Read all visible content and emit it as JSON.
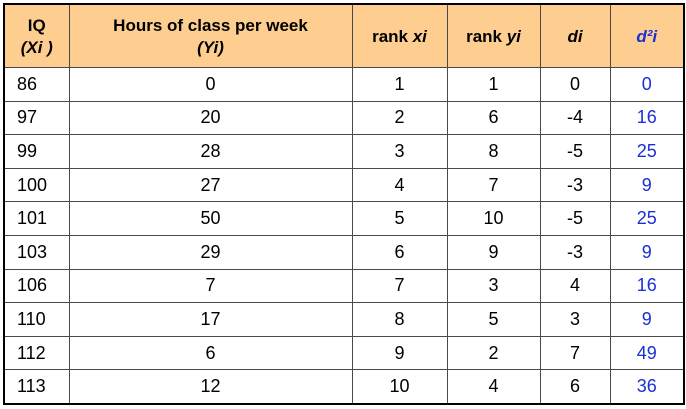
{
  "table": {
    "headers": {
      "x_line1": "IQ",
      "x_line2": "(Xi )",
      "y_line1": "Hours of class per week",
      "y_line2": "(Yi)",
      "rank_x_prefix": "rank ",
      "rank_x_var": "xi",
      "rank_y_prefix": "rank ",
      "rank_y_var": "yi",
      "di": "di",
      "d2i": "d²i"
    },
    "rows": [
      {
        "x": "86",
        "y": "0",
        "rx": "1",
        "ry": "1",
        "d": "0",
        "d2": "0"
      },
      {
        "x": "97",
        "y": "20",
        "rx": "2",
        "ry": "6",
        "d": "-4",
        "d2": "16"
      },
      {
        "x": "99",
        "y": "28",
        "rx": "3",
        "ry": "8",
        "d": "-5",
        "d2": "25"
      },
      {
        "x": "100",
        "y": "27",
        "rx": "4",
        "ry": "7",
        "d": "-3",
        "d2": "9"
      },
      {
        "x": "101",
        "y": "50",
        "rx": "5",
        "ry": "10",
        "d": "-5",
        "d2": "25"
      },
      {
        "x": "103",
        "y": "29",
        "rx": "6",
        "ry": "9",
        "d": "-3",
        "d2": "9"
      },
      {
        "x": "106",
        "y": "7",
        "rx": "7",
        "ry": "3",
        "d": "4",
        "d2": "16"
      },
      {
        "x": "110",
        "y": "17",
        "rx": "8",
        "ry": "5",
        "d": "3",
        "d2": "9"
      },
      {
        "x": "112",
        "y": "6",
        "rx": "9",
        "ry": "2",
        "d": "7",
        "d2": "49"
      },
      {
        "x": "113",
        "y": "12",
        "rx": "10",
        "ry": "4",
        "d": "6",
        "d2": "36"
      }
    ]
  },
  "colors": {
    "header_background": "#fdce8f",
    "d2_text": "#1a2fd6",
    "border": "#4a4a4a"
  }
}
